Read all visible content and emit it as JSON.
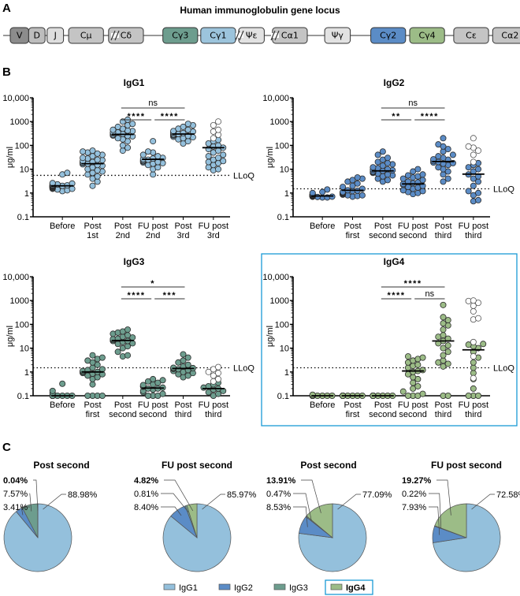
{
  "panel_labels": {
    "a": "A",
    "b": "B",
    "c": "C"
  },
  "gene_locus": {
    "title": "Human immunoglobulin gene locus",
    "segments": [
      {
        "label": "V",
        "color": "#8c8c8c",
        "break_before": false
      },
      {
        "label": "D",
        "color": "#bdbdbd",
        "break_before": false
      },
      {
        "label": "J",
        "color": "#dedede",
        "break_before": false
      },
      {
        "label": "Cμ",
        "color": "#c4c4c4",
        "break_before": false
      },
      {
        "label": "Cδ",
        "color": "#c4c4c4",
        "break_before": false
      },
      {
        "label": "Cγ3",
        "color": "#6d9d8e",
        "break_before": true
      },
      {
        "label": "Cγ1",
        "color": "#9cc4dc",
        "break_before": false
      },
      {
        "label": "Ψε",
        "color": "#e2e2e2",
        "break_before": false
      },
      {
        "label": "Cα1",
        "color": "#c4c4c4",
        "break_before": false
      },
      {
        "label": "Ψγ",
        "color": "#e2e2e2",
        "break_before": true
      },
      {
        "label": "Cγ2",
        "color": "#5b8cc6",
        "break_before": true
      },
      {
        "label": "Cγ4",
        "color": "#9cbc87",
        "break_before": false
      },
      {
        "label": "Cε",
        "color": "#c4c4c4",
        "break_before": false
      },
      {
        "label": "Cα2",
        "color": "#c4c4c4",
        "break_before": false
      }
    ]
  },
  "colors": {
    "IgG1": "#94c0dc",
    "IgG2": "#5b8cc6",
    "IgG3": "#6d9d8e",
    "IgG4": "#9cbc87",
    "highlight": "#1a9ad6"
  },
  "chart_data": [
    {
      "type": "scatter",
      "title": "IgG1",
      "ylabel": "μg/ml",
      "yscale": "log",
      "ylim": [
        0.1,
        10000
      ],
      "yticks": [
        "0.1",
        "1",
        "10",
        "100",
        "1000",
        "10,000"
      ],
      "categories": [
        "Before|",
        "Post|1st",
        "Post|2nd",
        "FU post|2nd",
        "Post|3rd",
        "FU post|3rd"
      ],
      "color_key": "IgG1",
      "lloq": 5.5,
      "lloq_label": "LLoQ",
      "medians": [
        2.0,
        17,
        290,
        26,
        300,
        80
      ],
      "points": [
        [
          1.5,
          1.7,
          2.0,
          2.2,
          1.9,
          2.5,
          1.8,
          1.6,
          2.1,
          2.3,
          1.4,
          2.6,
          1.8,
          2.0,
          1.2,
          7.0,
          6.0,
          1.9,
          2.1,
          1.3,
          2.4,
          1.7,
          1.5,
          2.0
        ],
        [
          2,
          3,
          4,
          5,
          6,
          8,
          10,
          12,
          14,
          17,
          19,
          22,
          25,
          30,
          35,
          40,
          45,
          50,
          55,
          60,
          16,
          18,
          20,
          9,
          7,
          15,
          24,
          28
        ],
        [
          60,
          80,
          100,
          150,
          200,
          250,
          280,
          300,
          320,
          350,
          400,
          450,
          500,
          600,
          700,
          800,
          1000,
          1200,
          280,
          260,
          240,
          350,
          420,
          180
        ],
        [
          6,
          10,
          12,
          15,
          18,
          20,
          22,
          25,
          27,
          30,
          35,
          40,
          50,
          55,
          150,
          28,
          24,
          19,
          21,
          17
        ],
        [
          120,
          150,
          180,
          200,
          230,
          260,
          280,
          300,
          330,
          350,
          400,
          450,
          500,
          600,
          700,
          800,
          280,
          310,
          250,
          220,
          380
        ],
        [
          9,
          10,
          12,
          15,
          18,
          25,
          30,
          40,
          50,
          60,
          80,
          100,
          120,
          150,
          170,
          70,
          90,
          20,
          22,
          35
        ]
      ],
      "open_points": [
        [],
        [],
        [],
        [],
        [],
        [
          200,
          280,
          380,
          450,
          700,
          1000
        ]
      ],
      "significance": [
        {
          "from": 2,
          "to": 3,
          "label": "****",
          "level": 0
        },
        {
          "from": 3,
          "to": 4,
          "label": "****",
          "level": 0
        },
        {
          "from": 2,
          "to": 4,
          "label": "ns",
          "level": 1
        }
      ]
    },
    {
      "type": "scatter",
      "title": "IgG2",
      "ylabel": "μg/ml",
      "yscale": "log",
      "ylim": [
        0.1,
        10000
      ],
      "yticks": [
        "0.1",
        "1",
        "10",
        "100",
        "1000",
        "10,000"
      ],
      "categories": [
        "Before|",
        "Post|first",
        "Post|second",
        "FU post|second",
        "Post|third",
        "FU post|third"
      ],
      "color_key": "IgG2",
      "lloq": 1.5,
      "lloq_label": "LLoQ",
      "medians": [
        0.75,
        1.3,
        8.5,
        2.4,
        21,
        6.2
      ],
      "points": [
        [
          0.65,
          0.7,
          0.75,
          0.8,
          0.85,
          0.9,
          0.7,
          0.75,
          0.8,
          0.7,
          0.65,
          0.9,
          1.0,
          1.1,
          1.4,
          0.72,
          0.78,
          0.82,
          0.68,
          0.74
        ],
        [
          0.7,
          0.8,
          0.9,
          1.0,
          1.1,
          1.2,
          1.3,
          1.5,
          1.8,
          2.0,
          2.5,
          3.0,
          3.5,
          4.0,
          4.5,
          0.75,
          0.85,
          0.95,
          1.05,
          1.25,
          0.8,
          0.9
        ],
        [
          3,
          3.5,
          4,
          5,
          6,
          7,
          8,
          8.5,
          9,
          10,
          11,
          12,
          14,
          16,
          18,
          20,
          25,
          30,
          40,
          55,
          9.5,
          7.5,
          6.5,
          5.5
        ],
        [
          0.9,
          1.0,
          1.1,
          1.3,
          1.5,
          1.8,
          2.0,
          2.2,
          2.4,
          2.6,
          3.0,
          3.5,
          4.0,
          5.0,
          6.0,
          8.0,
          10,
          2.8,
          1.7,
          1.2,
          5.5,
          4.5
        ],
        [
          3,
          4,
          6,
          8,
          10,
          12,
          15,
          18,
          20,
          22,
          25,
          30,
          35,
          40,
          55,
          70,
          90,
          110,
          200,
          19,
          17,
          26
        ],
        [
          0.45,
          0.5,
          0.8,
          1.0,
          1.2,
          2.0,
          3.0,
          4.0,
          5.0,
          6.0,
          8.0,
          10,
          12,
          15,
          18
        ]
      ],
      "open_points": [
        [],
        [],
        [],
        [],
        [],
        [
          20,
          40,
          60,
          80,
          90,
          200
        ]
      ],
      "significance": [
        {
          "from": 2,
          "to": 3,
          "label": "**",
          "level": 0
        },
        {
          "from": 3,
          "to": 4,
          "label": "****",
          "level": 0
        },
        {
          "from": 2,
          "to": 4,
          "label": "ns",
          "level": 1
        }
      ]
    },
    {
      "type": "scatter",
      "title": "IgG3",
      "ylabel": "μg/ml",
      "yscale": "log",
      "ylim": [
        0.1,
        10000
      ],
      "yticks": [
        "0.1",
        "1",
        "10",
        "100",
        "1000",
        "10,000"
      ],
      "categories": [
        "Before|",
        "Post|first",
        "Post|second",
        "FU post|second",
        "Post|third",
        "FU post|third"
      ],
      "color_key": "IgG3",
      "lloq": 1.5,
      "lloq_label": "LLoQ",
      "medians": [
        0.1,
        1.0,
        21,
        0.21,
        1.4,
        0.2
      ],
      "points": [
        [
          0.1,
          0.1,
          0.1,
          0.1,
          0.1,
          0.1,
          0.1,
          0.1,
          0.1,
          0.1,
          0.1,
          0.1,
          0.13,
          0.16,
          0.32
        ],
        [
          0.1,
          0.1,
          0.1,
          0.1,
          0.3,
          0.5,
          0.6,
          0.7,
          0.8,
          0.9,
          1.0,
          1.1,
          1.2,
          1.5,
          2.0,
          2.5,
          3.0,
          3.5,
          4.0,
          5.0,
          0.95,
          1.05,
          0.85,
          1.3
        ],
        [
          4.5,
          5,
          7,
          10,
          12,
          15,
          18,
          20,
          22,
          25,
          30,
          35,
          40,
          45,
          50,
          60,
          20,
          24,
          28,
          16
        ],
        [
          0.1,
          0.1,
          0.1,
          0.12,
          0.14,
          0.16,
          0.18,
          0.2,
          0.22,
          0.25,
          0.28,
          0.3,
          0.35,
          0.4,
          0.45,
          0.5,
          0.2,
          0.24
        ],
        [
          0.6,
          0.7,
          0.8,
          0.9,
          1.0,
          1.2,
          1.3,
          1.4,
          1.5,
          1.7,
          2.0,
          2.5,
          3.0,
          4.0,
          5.5,
          1.45,
          1.35,
          1.1
        ],
        [
          0.1,
          0.12,
          0.14,
          0.16,
          0.18,
          0.2,
          0.22,
          0.25,
          0.3,
          0.35
        ]
      ],
      "open_points": [
        [],
        [],
        [],
        [],
        [],
        [
          0.4,
          0.5,
          0.7,
          0.9,
          1.0,
          1.3,
          1.6
        ]
      ],
      "significance": [
        {
          "from": 2,
          "to": 3,
          "label": "****",
          "level": 0
        },
        {
          "from": 3,
          "to": 4,
          "label": "***",
          "level": 0
        },
        {
          "from": 2,
          "to": 4,
          "label": "*",
          "level": 1
        }
      ]
    },
    {
      "type": "scatter",
      "title": "IgG4",
      "ylabel": "μg/ml",
      "yscale": "log",
      "ylim": [
        0.1,
        10000
      ],
      "yticks": [
        "0.1",
        "1",
        "10",
        "100",
        "1000",
        "10,000"
      ],
      "categories": [
        "Before|",
        "Post|first",
        "Post|second",
        "FU post|second",
        "Post|third",
        "FU post|third"
      ],
      "color_key": "IgG4",
      "lloq": 1.5,
      "lloq_label": "LLoQ",
      "highlighted": true,
      "medians": [
        0.1,
        0.1,
        0.1,
        1.1,
        20,
        8.5
      ],
      "points": [
        [
          0.1,
          0.1,
          0.1,
          0.1,
          0.1,
          0.1,
          0.1,
          0.1,
          0.1,
          0.1,
          0.1,
          0.11
        ],
        [
          0.1,
          0.1,
          0.1,
          0.1,
          0.1,
          0.1,
          0.1,
          0.1,
          0.1,
          0.1,
          0.1,
          0.1
        ],
        [
          0.1,
          0.1,
          0.1,
          0.1,
          0.1,
          0.1,
          0.1,
          0.1,
          0.1,
          0.1,
          0.1,
          0.1
        ],
        [
          0.1,
          0.1,
          0.1,
          0.12,
          0.15,
          0.2,
          0.25,
          0.35,
          0.5,
          0.6,
          0.8,
          1.0,
          1.1,
          1.2,
          1.5,
          1.8,
          2.0,
          2.5,
          3.0,
          3.5,
          4.0,
          4.5
        ],
        [
          0.1,
          0.1,
          1.7,
          2.2,
          2.5,
          3,
          5,
          7,
          10,
          13,
          16,
          20,
          25,
          30,
          35,
          60,
          90,
          110,
          150,
          200,
          650
        ],
        [
          0.1,
          0.1,
          0.1,
          0.2,
          0.5,
          0.9,
          1.5,
          2.5,
          4,
          7,
          10,
          12,
          14,
          15
        ]
      ],
      "open_points": [
        [],
        [],
        [],
        [],
        [],
        [
          0.55,
          4.5,
          18,
          160,
          180,
          350,
          600,
          800,
          950,
          1000
        ]
      ],
      "significance": [
        {
          "from": 2,
          "to": 3,
          "label": "****",
          "level": 0
        },
        {
          "from": 3,
          "to": 4,
          "label": "ns",
          "level": 0
        },
        {
          "from": 2,
          "to": 4,
          "label": "****",
          "level": 1
        }
      ]
    },
    {
      "type": "pie",
      "title": "Post  second",
      "slices": [
        {
          "name": "IgG1",
          "value": 88.98,
          "label": "88.98%"
        },
        {
          "name": "IgG2",
          "value": 3.41,
          "label": "3.41%"
        },
        {
          "name": "IgG3",
          "value": 7.57,
          "label": "7.57%"
        },
        {
          "name": "IgG4",
          "value": 0.04,
          "label": "0.04%",
          "bold": true
        }
      ]
    },
    {
      "type": "pie",
      "title": "FU post second",
      "slices": [
        {
          "name": "IgG1",
          "value": 85.97,
          "label": "85.97%"
        },
        {
          "name": "IgG2",
          "value": 8.4,
          "label": "8.40%"
        },
        {
          "name": "IgG3",
          "value": 0.81,
          "label": "0.81%"
        },
        {
          "name": "IgG4",
          "value": 4.82,
          "label": "4.82%",
          "bold": true
        }
      ]
    },
    {
      "type": "pie",
      "title": "Post second",
      "slices": [
        {
          "name": "IgG1",
          "value": 77.09,
          "label": "77.09%"
        },
        {
          "name": "IgG2",
          "value": 8.53,
          "label": "8.53%"
        },
        {
          "name": "IgG3",
          "value": 0.47,
          "label": "0.47%"
        },
        {
          "name": "IgG4",
          "value": 13.91,
          "label": "13.91%",
          "bold": true
        }
      ]
    },
    {
      "type": "pie",
      "title": "FU post second",
      "slices": [
        {
          "name": "IgG1",
          "value": 72.58,
          "label": "72.58%"
        },
        {
          "name": "IgG2",
          "value": 7.93,
          "label": "7.93%"
        },
        {
          "name": "IgG3",
          "value": 0.22,
          "label": "0.22%"
        },
        {
          "name": "IgG4",
          "value": 19.27,
          "label": "19.27%",
          "bold": true
        }
      ]
    }
  ],
  "legend": [
    {
      "label": "IgG1",
      "key": "IgG1",
      "bold": false,
      "highlighted": false
    },
    {
      "label": "IgG2",
      "key": "IgG2",
      "bold": false,
      "highlighted": false
    },
    {
      "label": "IgG3",
      "key": "IgG3",
      "bold": false,
      "highlighted": false
    },
    {
      "label": "IgG4",
      "key": "IgG4",
      "bold": true,
      "highlighted": true
    }
  ]
}
